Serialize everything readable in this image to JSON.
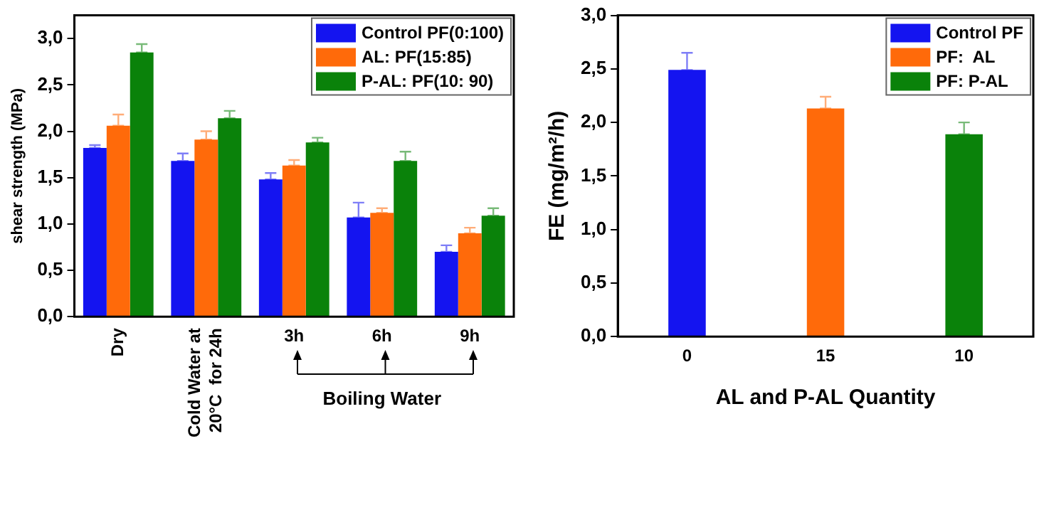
{
  "chart_data": [
    {
      "type": "bar",
      "ylabel": "shear strength (MPa)",
      "categories": [
        "Dry",
        "Cold Water at 20°C  for 24h",
        "3h",
        "6h",
        "9h"
      ],
      "series": [
        {
          "name": "Control PF(0:100)",
          "color": "#1414f0",
          "values": [
            1.82,
            1.68,
            1.48,
            1.07,
            0.7
          ],
          "errors": [
            [
              1.82,
              1.85
            ],
            [
              1.68,
              1.76
            ],
            [
              1.48,
              1.55
            ],
            [
              1.07,
              1.23
            ],
            [
              0.7,
              0.77
            ]
          ]
        },
        {
          "name": "AL: PF(15:85)",
          "color": "#ff6a0a",
          "values": [
            2.06,
            1.91,
            1.63,
            1.12,
            0.9
          ],
          "errors": [
            [
              2.06,
              2.18
            ],
            [
              1.91,
              2.0
            ],
            [
              1.63,
              1.69
            ],
            [
              1.12,
              1.17
            ],
            [
              0.9,
              0.96
            ]
          ]
        },
        {
          "name": "P-AL: PF(10: 90)",
          "color": "#0a820a",
          "values": [
            2.85,
            2.14,
            1.88,
            1.68,
            1.09
          ],
          "errors": [
            [
              2.85,
              2.94
            ],
            [
              2.14,
              2.22
            ],
            [
              1.88,
              1.93
            ],
            [
              1.68,
              1.78
            ],
            [
              1.09,
              1.17
            ]
          ]
        }
      ],
      "ylim": [
        0,
        3.25
      ],
      "yticks": [
        {
          "value": 0,
          "label": "0,0"
        },
        {
          "value": 0.5,
          "label": "0,5"
        },
        {
          "value": 1,
          "label": "1,0"
        },
        {
          "value": 1.5,
          "label": "1,5"
        },
        {
          "value": 2,
          "label": "2,0"
        },
        {
          "value": 2.5,
          "label": "2,5"
        },
        {
          "value": 3,
          "label": "3,0"
        }
      ],
      "grid": false,
      "legend": "top right",
      "annotations": [
        "Boiling Water"
      ]
    },
    {
      "type": "bar",
      "ylabel": "FE (mg/m²/h)",
      "xlabel": "AL and P-AL Quantity",
      "categories": [
        "0",
        "15",
        "10"
      ],
      "series": [
        {
          "name": "Control PF",
          "color": "#1414f0",
          "values": [
            2.49,
            null,
            null
          ],
          "errors": [
            [
              2.49,
              2.65
            ],
            null,
            null
          ]
        },
        {
          "name": "PF:  AL",
          "color": "#ff6a0a",
          "values": [
            null,
            2.13,
            null
          ],
          "errors": [
            null,
            [
              2.13,
              2.24
            ],
            null
          ]
        },
        {
          "name": "PF: P-AL",
          "color": "#0a820a",
          "values": [
            null,
            null,
            1.89
          ],
          "errors": [
            null,
            null,
            [
              1.89,
              2.0
            ]
          ]
        }
      ],
      "ylim": [
        0,
        3
      ],
      "yticks": [
        {
          "value": 0,
          "label": "0,0"
        },
        {
          "value": 0.5,
          "label": "0,5"
        },
        {
          "value": 1,
          "label": "1,0"
        },
        {
          "value": 1.5,
          "label": "1,5"
        },
        {
          "value": 2,
          "label": "2,0"
        },
        {
          "value": 2.5,
          "label": "2,5"
        },
        {
          "value": 3,
          "label": "3,0"
        }
      ],
      "grid": false,
      "legend": "top right"
    }
  ]
}
